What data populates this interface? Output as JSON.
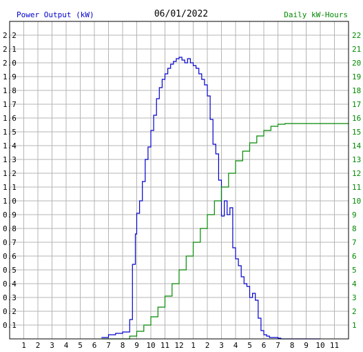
{
  "chart_data": {
    "type": "line",
    "title": "06/01/2022",
    "ylabel": "Power Output (kW)",
    "y2label": "Daily kW-Hours",
    "colors": {
      "power": "#0000cc",
      "energy": "#008800",
      "title": "#000000",
      "grid": "#b4b4b4",
      "axis": "#000000"
    },
    "xlim": [
      0,
      24
    ],
    "ylim": [
      0,
      2.3
    ],
    "y2lim": [
      0,
      23
    ],
    "grid": true,
    "x_tick_labels": [
      "1",
      "2",
      "3",
      "4",
      "5",
      "6",
      "7",
      "8",
      "9",
      "10",
      "11",
      "12",
      "1",
      "2",
      "3",
      "4",
      "5",
      "6",
      "7",
      "8",
      "9",
      "10",
      "11"
    ],
    "y_tick_labels": [
      "0.1",
      "0.2",
      "0.3",
      "0.4",
      "0.5",
      "0.6",
      "0.7",
      "0.8",
      "0.9",
      "1.0",
      "1.1",
      "1.2",
      "1.3",
      "1.4",
      "1.5",
      "1.6",
      "1.7",
      "1.8",
      "1.9",
      "2.0",
      "2.1",
      "2.2"
    ],
    "y2_tick_labels": [
      "1",
      "2",
      "3",
      "4",
      "5",
      "6",
      "7",
      "8",
      "9",
      "10",
      "11",
      "12",
      "13",
      "14",
      "15",
      "16",
      "17",
      "18",
      "19",
      "20",
      "21",
      "22"
    ],
    "series": [
      {
        "axis": "left",
        "step": true,
        "x": [
          6.5,
          7.0,
          7.5,
          8.0,
          8.5,
          8.7,
          8.9,
          9.0,
          9.2,
          9.4,
          9.6,
          9.8,
          10.0,
          10.2,
          10.4,
          10.6,
          10.8,
          11.0,
          11.2,
          11.4,
          11.6,
          11.8,
          12.0,
          12.2,
          12.4,
          12.6,
          12.8,
          13.0,
          13.2,
          13.4,
          13.6,
          13.8,
          14.0,
          14.2,
          14.4,
          14.6,
          14.8,
          15.0,
          15.2,
          15.4,
          15.6,
          15.8,
          16.0,
          16.2,
          16.4,
          16.6,
          16.8,
          17.0,
          17.2,
          17.4,
          17.6,
          17.8,
          18.0,
          18.2,
          18.4,
          18.6,
          18.8,
          19.0,
          19.2,
          19.4,
          19.6,
          19.8,
          20.0,
          20.2,
          20.4,
          20.6,
          20.8,
          21.0,
          21.5,
          22.0
        ],
        "y": [
          0.01,
          0.03,
          0.04,
          0.05,
          0.14,
          0.54,
          0.76,
          0.91,
          1.0,
          1.14,
          1.3,
          1.39,
          1.51,
          1.62,
          1.74,
          1.82,
          1.88,
          1.92,
          1.96,
          1.99,
          2.01,
          2.03,
          2.04,
          2.02,
          2.0,
          2.03,
          2.0,
          1.98,
          1.96,
          1.92,
          1.88,
          1.84,
          1.76,
          1.59,
          1.41,
          1.34,
          1.15,
          0.89,
          1.0,
          0.9,
          0.95,
          0.66,
          0.58,
          0.53,
          0.45,
          0.4,
          0.38,
          0.3,
          0.33,
          0.28,
          0.15,
          0.06,
          0.03,
          0.02,
          0.01,
          0.01,
          0.01,
          0.005,
          0.0,
          0.0,
          0.0,
          0.0,
          0.0,
          0.0,
          0.0,
          0.0,
          0.0,
          0.0,
          0.0,
          0.0
        ]
      },
      {
        "axis": "right",
        "step": true,
        "x": [
          6.5,
          7.0,
          7.5,
          8.0,
          8.5,
          9.0,
          9.5,
          10.0,
          10.5,
          11.0,
          11.5,
          12.0,
          12.5,
          13.0,
          13.5,
          14.0,
          14.5,
          15.0,
          15.5,
          16.0,
          16.5,
          17.0,
          17.5,
          18.0,
          18.5,
          19.0,
          19.5,
          20.0,
          20.5,
          21.0,
          21.5,
          22.0,
          22.5,
          23.0,
          23.5,
          24.0
        ],
        "y": [
          0.0,
          0.0,
          0.0,
          0.0,
          0.2,
          0.55,
          1.0,
          1.6,
          2.3,
          3.1,
          4.0,
          5.0,
          6.0,
          7.0,
          8.0,
          9.0,
          10.0,
          11.0,
          12.0,
          12.9,
          13.6,
          14.2,
          14.7,
          15.1,
          15.4,
          15.55,
          15.6,
          15.6,
          15.6,
          15.6,
          15.6,
          15.6,
          15.6,
          15.6,
          15.6,
          15.6
        ]
      }
    ]
  }
}
